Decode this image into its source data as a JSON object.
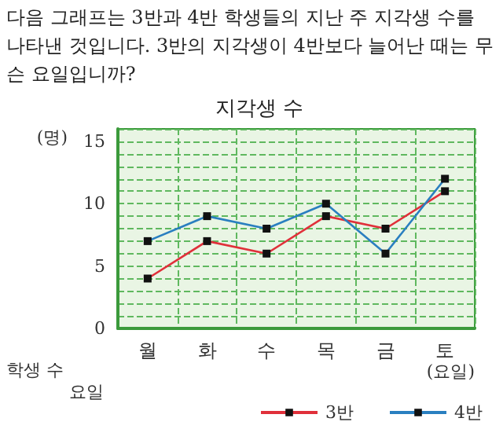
{
  "chart_data": {
    "type": "line",
    "title": "지각생 수",
    "annotations": [
      "다음 그래프는 3반과 4반 학생들의 지난 주 지각생 수를 나타낸 것입니다. 3반의 지각생이 4반보다 늘어난 때는 무슨 요일입니까?",
      "학생 수",
      "요일"
    ],
    "categories": [
      "월",
      "화",
      "수",
      "목",
      "금",
      "토"
    ],
    "xlabel": "(요일)",
    "ylabel": "(명)",
    "series": [
      {
        "name": "3반",
        "color": "#e0303a",
        "values": [
          4,
          7,
          6,
          9,
          8,
          11
        ]
      },
      {
        "name": "4반",
        "color": "#2a7fc0",
        "values": [
          7,
          9,
          8,
          10,
          6,
          12
        ]
      }
    ],
    "ylim": [
      0,
      16
    ],
    "yticks": [
      0,
      5,
      10,
      15
    ],
    "grid": true,
    "legend": "bottom right",
    "marker": "square",
    "line_style": "solid"
  }
}
